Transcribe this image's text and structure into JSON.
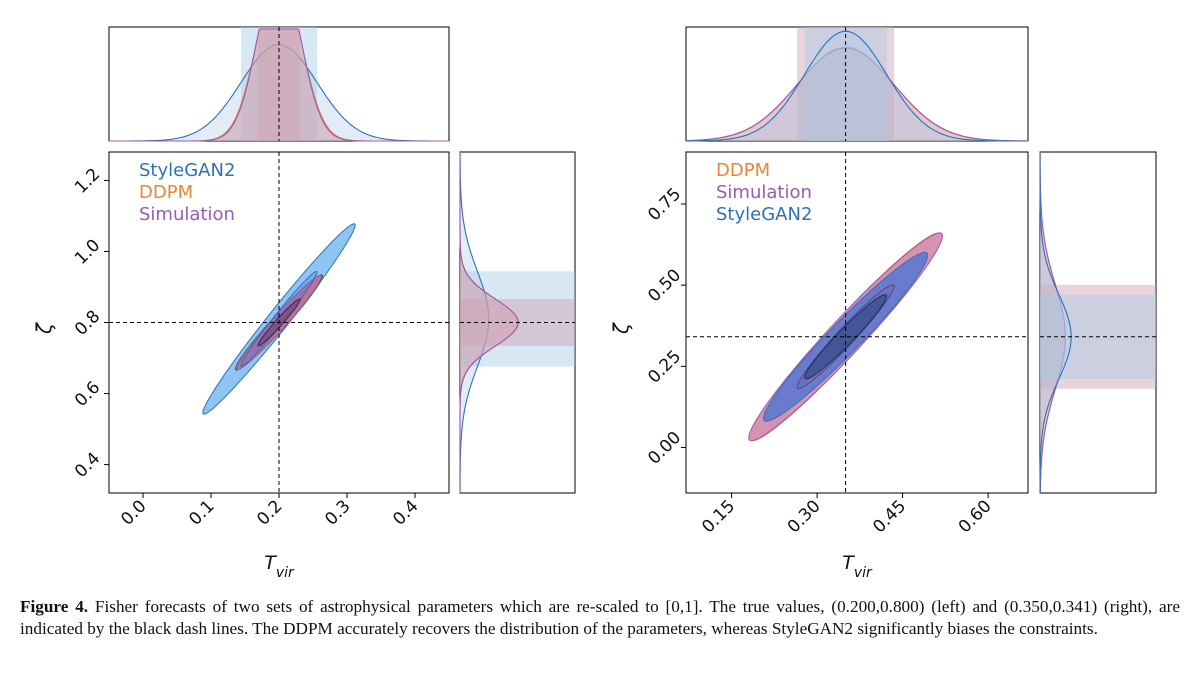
{
  "colors": {
    "stylegan2": "#2d72b8",
    "stylegan2_fill": "#69b1f0",
    "ddpm": "#e8853a",
    "simulation": "#9a5bb4",
    "sim_fill": "#c76e9e",
    "ddpm_fill_inner": "#4c4670",
    "right_outer_fill": "#d490b4",
    "right_blue": "#4f76d4",
    "truth_line": "#000000"
  },
  "caption": {
    "label": "Figure 4.",
    "text": "Fisher forecasts of two sets of astrophysical parameters which are re-scaled to [0,1]. The true values, (0.200,0.800) (left) and (0.350,0.341) (right), are indicated by the black dash lines. The DDPM accurately recovers the distribution of the parameters, whereas StyleGAN2 significantly biases the constraints."
  },
  "chart_data": [
    {
      "type": "contour",
      "panel": "left",
      "xlabel": "T_vir",
      "ylabel": "ζ",
      "xlim": [
        -0.05,
        0.45
      ],
      "ylim": [
        0.32,
        1.28
      ],
      "xticks": [
        "0.0",
        "0.1",
        "0.2",
        "0.3",
        "0.4"
      ],
      "xtick_values": [
        0.0,
        0.1,
        0.2,
        0.3,
        0.4
      ],
      "yticks": [
        "0.4",
        "0.6",
        "0.8",
        "1.0",
        "1.2"
      ],
      "ytick_values": [
        0.4,
        0.6,
        0.8,
        1.0,
        1.2
      ],
      "truth": [
        0.2,
        0.8
      ],
      "legend": [
        "StyleGAN2",
        "DDPM",
        "Simulation"
      ],
      "legend_location": "upper-left",
      "series": [
        {
          "name": "StyleGAN2",
          "center": [
            0.2,
            0.81
          ],
          "sigma_x": 0.056,
          "sigma_y": 0.134,
          "rho": 0.985
        },
        {
          "name": "DDPM",
          "center": [
            0.2,
            0.8
          ],
          "sigma_x": 0.032,
          "sigma_y": 0.067,
          "rho": 0.975
        },
        {
          "name": "Simulation",
          "center": [
            0.2,
            0.8
          ],
          "sigma_x": 0.031,
          "sigma_y": 0.066,
          "rho": 0.975
        }
      ]
    },
    {
      "type": "contour",
      "panel": "right",
      "xlabel": "T_vir",
      "ylabel": "ζ",
      "xlim": [
        0.07,
        0.67
      ],
      "ylim": [
        -0.14,
        0.91
      ],
      "xticks": [
        "0.15",
        "0.30",
        "0.45",
        "0.60"
      ],
      "xtick_values": [
        0.15,
        0.3,
        0.45,
        0.6
      ],
      "yticks": [
        "0.00",
        "0.25",
        "0.50",
        "0.75"
      ],
      "ytick_values": [
        0.0,
        0.25,
        0.5,
        0.75
      ],
      "truth": [
        0.35,
        0.341
      ],
      "legend": [
        "DDPM",
        "Simulation",
        "StyleGAN2"
      ],
      "legend_location": "upper-left",
      "series": [
        {
          "name": "DDPM",
          "center": [
            0.35,
            0.341
          ],
          "sigma_x": 0.084,
          "sigma_y": 0.16,
          "rho": 0.97
        },
        {
          "name": "Simulation",
          "center": [
            0.35,
            0.341
          ],
          "sigma_x": 0.085,
          "sigma_y": 0.16,
          "rho": 0.97
        },
        {
          "name": "StyleGAN2",
          "center": [
            0.35,
            0.341
          ],
          "sigma_x": 0.072,
          "sigma_y": 0.13,
          "rho": 0.965
        }
      ]
    }
  ]
}
